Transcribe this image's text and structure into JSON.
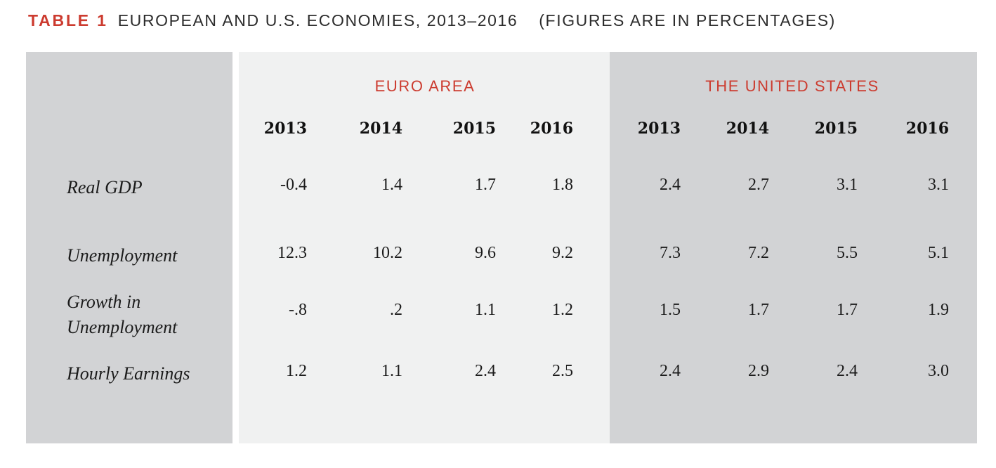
{
  "caption": {
    "tag": "TABLE 1",
    "title": "EUROPEAN AND U.S. ECONOMIES, 2013–2016",
    "note": "(FIGURES ARE IN PERCENTAGES)"
  },
  "groups": {
    "euro": "EURO AREA",
    "us": "THE UNITED STATES"
  },
  "years": [
    "2013",
    "2014",
    "2015",
    "2016"
  ],
  "rows": [
    {
      "label": "Real GDP",
      "euro": [
        "-0.4",
        "1.4",
        "1.7",
        "1.8"
      ],
      "us": [
        "2.4",
        "2.7",
        "3.1",
        "3.1"
      ]
    },
    {
      "label": "Unemployment",
      "euro": [
        "12.3",
        "10.2",
        "9.6",
        "9.2"
      ],
      "us": [
        "7.3",
        "7.2",
        "5.5",
        "5.1"
      ]
    },
    {
      "label": "Growth in Unemployment",
      "euro": [
        "-.8",
        ".2",
        "1.1",
        "1.2"
      ],
      "us": [
        "1.5",
        "1.7",
        "1.7",
        "1.9"
      ]
    },
    {
      "label": "Hourly Earnings",
      "euro": [
        "1.2",
        "1.1",
        "2.4",
        "2.5"
      ],
      "us": [
        "2.4",
        "2.9",
        "2.4",
        "3.0"
      ]
    }
  ]
}
